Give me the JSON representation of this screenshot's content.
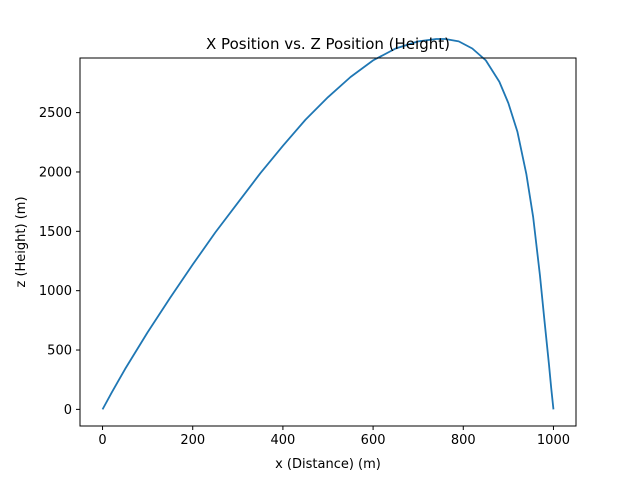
{
  "chart_data": {
    "type": "line",
    "title": "X Position vs. Z Position (Height)",
    "xlabel": "x (Distance) (m)",
    "ylabel": "z (Height) (m)",
    "xlim": [
      -50,
      1050
    ],
    "ylim": [
      -140,
      2960
    ],
    "xticks": [
      0,
      200,
      400,
      600,
      800,
      1000
    ],
    "yticks": [
      0,
      500,
      1000,
      1500,
      2000,
      2500
    ],
    "xtick_labels": [
      "0",
      "200",
      "400",
      "600",
      "800",
      "1000"
    ],
    "ytick_labels": [
      "0",
      "500",
      "1000",
      "1500",
      "2000",
      "2500"
    ],
    "grid": false,
    "series": [
      {
        "color": "#1f77b4",
        "x": [
          0,
          20,
          50,
          100,
          150,
          200,
          250,
          300,
          350,
          400,
          450,
          500,
          550,
          600,
          650,
          700,
          740,
          760,
          790,
          820,
          850,
          880,
          900,
          920,
          940,
          955,
          970,
          980,
          990,
          995,
          1000
        ],
        "y": [
          0,
          140,
          340,
          650,
          940,
          1220,
          1490,
          1740,
          1990,
          2220,
          2440,
          2630,
          2800,
          2940,
          3040,
          3100,
          3120,
          3120,
          3100,
          3040,
          2940,
          2760,
          2580,
          2340,
          1980,
          1620,
          1130,
          750,
          380,
          180,
          0
        ]
      }
    ]
  }
}
